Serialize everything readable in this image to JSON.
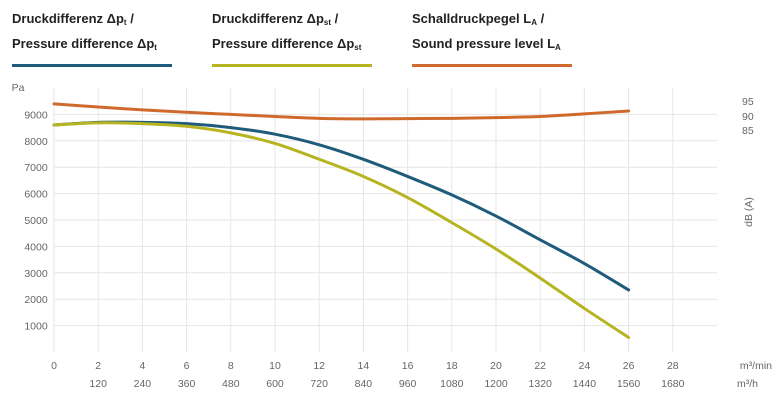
{
  "legend": [
    {
      "l1_main": "Druckdifferenz Δp",
      "l1_sub": "t",
      "l1_tail": " /",
      "l2_main": "Pressure difference Δp",
      "l2_sub": "t",
      "l2_tail": "",
      "color": "#1f5b7a"
    },
    {
      "l1_main": "Druckdifferenz Δp",
      "l1_sub": "st",
      "l1_tail": " /",
      "l2_main": "Pressure difference Δp",
      "l2_sub": "st",
      "l2_tail": "",
      "color": "#b7b422"
    },
    {
      "l1_main": "Schalldruckpegel L",
      "l1_sub": "A",
      "l1_tail": " /",
      "l2_main": "Sound pressure level L",
      "l2_sub": "A",
      "l2_tail": "",
      "color": "#cf6a2c"
    }
  ],
  "chart_data": {
    "type": "line",
    "title": "",
    "ylabel": "Pa",
    "ylabel_right": "dB (A)",
    "xlabel": "m³/min",
    "xlabel_secondary": "m³/h",
    "xlim": [
      0,
      30
    ],
    "ylim": [
      0,
      10000
    ],
    "yticks": [
      1000,
      2000,
      3000,
      4000,
      5000,
      6000,
      7000,
      8000,
      9000
    ],
    "xticks": [
      0,
      2,
      4,
      6,
      8,
      10,
      12,
      14,
      16,
      18,
      20,
      22,
      24,
      26,
      28
    ],
    "xticks_secondary": [
      120,
      240,
      360,
      480,
      600,
      720,
      840,
      960,
      1080,
      1200,
      1320,
      1440,
      1560,
      1680
    ],
    "yticks_right": [
      95,
      90,
      85
    ],
    "series": [
      {
        "name_key": 0,
        "color": "#1f5b7a",
        "x": [
          0,
          2,
          4,
          6,
          8,
          10,
          12,
          14,
          16,
          18,
          20,
          22,
          24,
          26
        ],
        "y": [
          8600,
          8700,
          8700,
          8650,
          8500,
          8250,
          7850,
          7300,
          6650,
          5950,
          5150,
          4250,
          3350,
          2350
        ]
      },
      {
        "name_key": 1,
        "color": "#b7b422",
        "x": [
          0,
          2,
          4,
          6,
          8,
          10,
          12,
          14,
          16,
          18,
          20,
          22,
          24,
          26
        ],
        "y": [
          8600,
          8680,
          8650,
          8550,
          8300,
          7900,
          7300,
          6650,
          5850,
          4900,
          3900,
          2800,
          1650,
          550
        ]
      },
      {
        "name_key": 2,
        "color": "#cf6a2c",
        "x": [
          0,
          2,
          4,
          6,
          8,
          10,
          12,
          14,
          16,
          18,
          20,
          22,
          24,
          26
        ],
        "y": [
          9400,
          9280,
          9170,
          9080,
          9000,
          8920,
          8850,
          8830,
          8840,
          8850,
          8880,
          8920,
          9020,
          9130
        ]
      }
    ]
  }
}
